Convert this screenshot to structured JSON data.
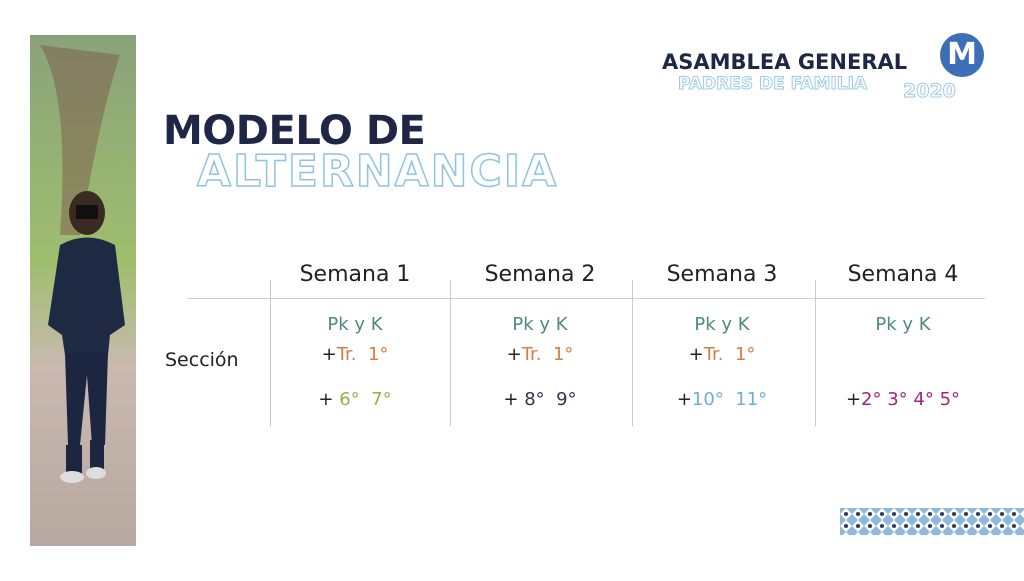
{
  "logo": {
    "title": "ASAMBLEA GENERAL",
    "subtitle": "PADRES DE FAMILIA",
    "year": "2020",
    "letter": "M"
  },
  "heading": {
    "line1": "MODELO DE",
    "line2": "ALTERNANCIA"
  },
  "table": {
    "columns": [
      "Semana 1",
      "Semana 2",
      "Semana 3",
      "Semana 4"
    ],
    "row_label": "Sección",
    "cells": [
      {
        "top": "Pk y K",
        "mid": {
          "plus": "+",
          "text": "Tr.  1°"
        },
        "bottom": {
          "plus": "+",
          "text": " 6°  7°"
        }
      },
      {
        "top": "Pk y K",
        "mid": {
          "plus": "+",
          "text": "Tr.  1°"
        },
        "bottom": {
          "plus": "+",
          "text": " 8°  9°"
        }
      },
      {
        "top": "Pk y K",
        "mid": {
          "plus": "+",
          "text": "Tr.  1°"
        },
        "bottom": {
          "plus": "+",
          "text": "10°  11°"
        }
      },
      {
        "top": "Pk y K",
        "bottom": {
          "plus": "+",
          "text": "2° 3° 4° 5°"
        }
      }
    ]
  }
}
